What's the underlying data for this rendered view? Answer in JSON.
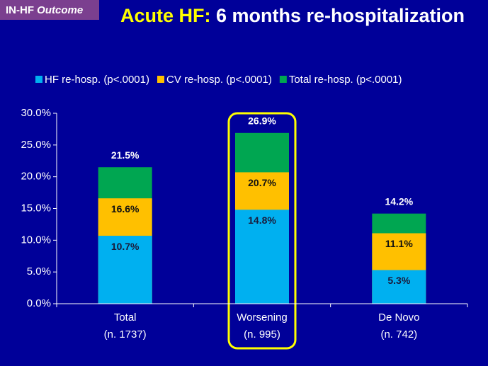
{
  "chart_data": {
    "type": "overlap-bar",
    "badge": "IN-HF",
    "badge_italic": "Outcome",
    "title_highlight": "Acute HF:",
    "title": "6 months re-hospitalization",
    "categories": [
      "Total",
      "Worsening",
      "De Novo"
    ],
    "category_notes": [
      "(n. 1737)",
      "(n. 995)",
      "(n. 742)"
    ],
    "series": [
      {
        "name": "HF re-hosp. (p<.0001)",
        "color": "#00b0f0",
        "label_color": "#1a1a3a",
        "values": [
          10.7,
          14.8,
          5.3
        ],
        "value_labels": [
          "10.7%",
          "14.8%",
          "5.3%"
        ]
      },
      {
        "name": "CV re-hosp. (p<.0001)",
        "color": "#ffc000",
        "label_color": "#111111",
        "values": [
          16.6,
          20.7,
          11.1
        ],
        "value_labels": [
          "16.6%",
          "20.7%",
          "11.1%"
        ]
      },
      {
        "name": "Total re-hosp. (p<.0001)",
        "color": "#00a651",
        "label_color": "#ffffff",
        "values": [
          21.5,
          26.9,
          14.2
        ],
        "value_labels": [
          "21.5%",
          "26.9%",
          "14.2%"
        ]
      }
    ],
    "ylim": [
      0,
      30
    ],
    "yticks": [
      {
        "value": 0,
        "label": "0.0%"
      },
      {
        "value": 5,
        "label": "5.0%"
      },
      {
        "value": 10,
        "label": "10.0%"
      },
      {
        "value": 15,
        "label": "15.0%"
      },
      {
        "value": 20,
        "label": "20.0%"
      },
      {
        "value": 25,
        "label": "25.0%"
      },
      {
        "value": 30,
        "label": "30.0%"
      }
    ],
    "highlight": "Worsening"
  }
}
